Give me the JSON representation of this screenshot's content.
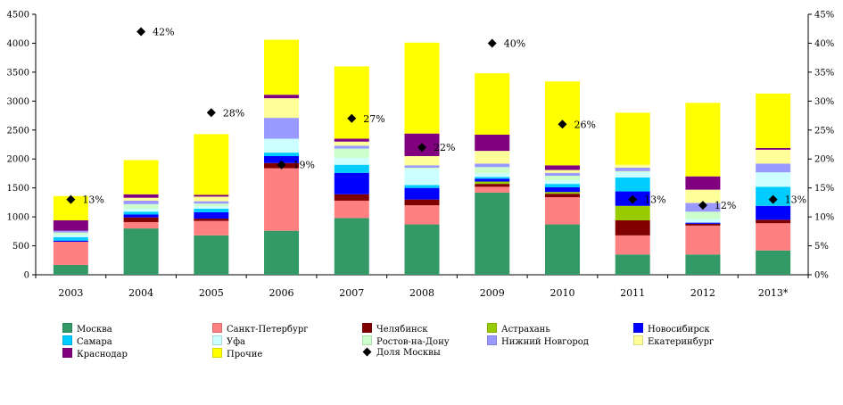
{
  "chart_data": {
    "type": "bar",
    "stacked": true,
    "categories": [
      "2003",
      "2004",
      "2005",
      "2006",
      "2007",
      "2008",
      "2009",
      "2010",
      "2011",
      "2012",
      "2013*"
    ],
    "ylim": [
      0,
      4500
    ],
    "yticks": [
      0,
      500,
      1000,
      1500,
      2000,
      2500,
      3000,
      3500,
      4000,
      4500
    ],
    "y2lim": [
      0,
      45
    ],
    "y2ticks": [
      "0%",
      "5%",
      "10%",
      "15%",
      "20%",
      "25%",
      "30%",
      "35%",
      "40%",
      "45%"
    ],
    "grid": false,
    "legend_position": "bottom",
    "series": [
      {
        "name": "Москва",
        "color": "#339966",
        "values": [
          170,
          800,
          680,
          760,
          980,
          870,
          1420,
          870,
          350,
          350,
          420
        ]
      },
      {
        "name": "Санкт-Петербург",
        "color": "#FF8080",
        "values": [
          400,
          110,
          250,
          1080,
          300,
          330,
          100,
          470,
          330,
          500,
          470
        ]
      },
      {
        "name": "Челябинск",
        "color": "#800000",
        "values": [
          0,
          80,
          40,
          90,
          110,
          100,
          50,
          60,
          260,
          30,
          60
        ]
      },
      {
        "name": "Астрахань",
        "color": "#99CC00",
        "values": [
          0,
          0,
          0,
          0,
          0,
          0,
          40,
          30,
          250,
          0,
          0
        ]
      },
      {
        "name": "Новосибирск",
        "color": "#0000FF",
        "values": [
          20,
          50,
          110,
          120,
          370,
          200,
          50,
          80,
          250,
          20,
          240
        ]
      },
      {
        "name": "Самара",
        "color": "#00CCFF",
        "values": [
          60,
          50,
          60,
          60,
          140,
          50,
          30,
          60,
          240,
          0,
          330
        ]
      },
      {
        "name": "Уфа",
        "color": "#CCFFFF",
        "values": [
          40,
          50,
          40,
          240,
          120,
          280,
          60,
          60,
          90,
          60,
          250
        ]
      },
      {
        "name": "Ростов-на-Дону",
        "color": "#CCFFCC",
        "values": [
          40,
          80,
          50,
          0,
          160,
          20,
          110,
          80,
          20,
          130,
          0
        ]
      },
      {
        "name": "Нижний Новгород",
        "color": "#9999FF",
        "values": [
          30,
          60,
          40,
          360,
          50,
          40,
          60,
          50,
          60,
          150,
          150
        ]
      },
      {
        "name": "Екатеринбург",
        "color": "#FFFF99",
        "values": [
          0,
          50,
          80,
          340,
          70,
          160,
          220,
          50,
          50,
          230,
          240
        ]
      },
      {
        "name": "Краснодар",
        "color": "#800080",
        "values": [
          180,
          60,
          30,
          60,
          50,
          390,
          280,
          80,
          0,
          230,
          30
        ]
      },
      {
        "name": "Прочие",
        "color": "#FFFF00",
        "values": [
          420,
          590,
          1050,
          950,
          1250,
          1570,
          1060,
          1450,
          900,
          1270,
          940
        ]
      }
    ],
    "share_series": {
      "name": "Доля Москвы",
      "color": "#000000",
      "values": [
        13,
        42,
        28,
        19,
        27,
        22,
        40,
        26,
        13,
        12,
        13
      ],
      "labels": [
        "13%",
        "42%",
        "28%",
        "19%",
        "27%",
        "22%",
        "40%",
        "26%",
        "13%",
        "12%",
        "13%"
      ]
    }
  }
}
